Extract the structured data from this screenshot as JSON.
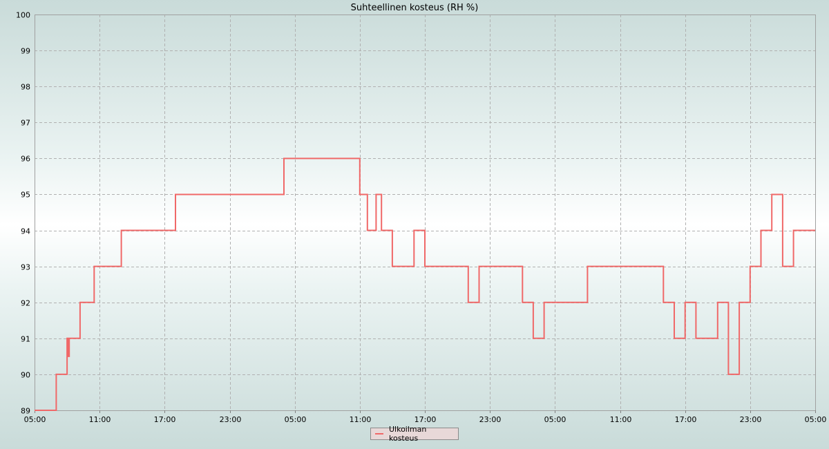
{
  "chart_data": {
    "type": "line",
    "title": "Suhteellinen kosteus (RH %)",
    "xlabel": "",
    "ylabel": "",
    "ylim": [
      89,
      100
    ],
    "xlim_hours": [
      0,
      72
    ],
    "yticks": [
      "89",
      "90",
      "91",
      "92",
      "93",
      "94",
      "95",
      "96",
      "97",
      "98",
      "99",
      "100"
    ],
    "xticks": [
      "05:00",
      "11:00",
      "17:00",
      "23:00",
      "05:00",
      "11:00",
      "17:00",
      "23:00",
      "05:00",
      "11:00",
      "17:00",
      "23:00",
      "05:00"
    ],
    "grid": true,
    "legend_position": "bottom-center",
    "series": [
      {
        "name": "Ulkoilman kosteus",
        "color": "#f06868",
        "step": true,
        "x_hours": [
          0,
          2,
          3,
          3.1,
          3.2,
          4.2,
          5.5,
          8,
          9,
          10,
          11,
          12,
          13,
          17,
          23,
          27,
          30,
          30.7,
          31.5,
          32,
          33,
          34,
          35,
          36,
          37,
          38,
          39,
          40,
          41,
          42,
          45,
          46,
          47,
          48,
          49,
          50,
          51,
          52,
          53,
          54,
          55,
          56,
          57,
          58,
          59,
          60,
          61,
          62,
          63,
          64,
          65,
          66,
          67,
          68,
          69,
          70,
          71,
          72
        ],
        "values": [
          89,
          90,
          91,
          90.5,
          91,
          92,
          93,
          94,
          94,
          94,
          94,
          94,
          95,
          95,
          96,
          96,
          95,
          94,
          95,
          94,
          93,
          93,
          94,
          93,
          93,
          93,
          93,
          92,
          93,
          93,
          92,
          91,
          92,
          92,
          92,
          92,
          93,
          93,
          93,
          93,
          93,
          93,
          93,
          92,
          91,
          92,
          91,
          91,
          92,
          90,
          92,
          93,
          94,
          95,
          93,
          94,
          94,
          94
        ]
      }
    ]
  }
}
